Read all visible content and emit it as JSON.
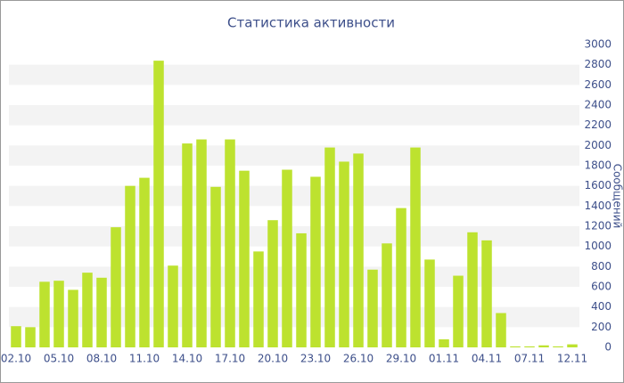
{
  "chart_data": {
    "type": "bar",
    "title": "Статистика активности",
    "y_label": "Сообщений",
    "categories": [
      "02.10",
      null,
      null,
      "05.10",
      null,
      null,
      "08.10",
      null,
      null,
      "11.10",
      null,
      null,
      "14.10",
      null,
      null,
      "17.10",
      null,
      null,
      "20.10",
      null,
      null,
      "23.10",
      null,
      null,
      "26.10",
      null,
      null,
      "29.10",
      null,
      null,
      "01.11",
      null,
      null,
      "04.11",
      null,
      null,
      "07.11",
      null,
      null,
      "12.11"
    ],
    "values": [
      210,
      200,
      650,
      660,
      570,
      740,
      690,
      1190,
      1600,
      1680,
      2840,
      810,
      2020,
      2060,
      1590,
      2060,
      1750,
      950,
      1260,
      1760,
      1130,
      1690,
      1980,
      1840,
      1920,
      770,
      1030,
      1380,
      1980,
      870,
      80,
      710,
      1140,
      1060,
      340,
      10,
      10,
      20,
      10,
      30
    ],
    "color": "#bde22f",
    "ylim": [
      0,
      3000
    ],
    "yticks": [
      0,
      200,
      400,
      600,
      800,
      1000,
      1200,
      1400,
      1600,
      1800,
      2000,
      2200,
      2400,
      2600,
      2800,
      3000
    ],
    "grid": true
  }
}
